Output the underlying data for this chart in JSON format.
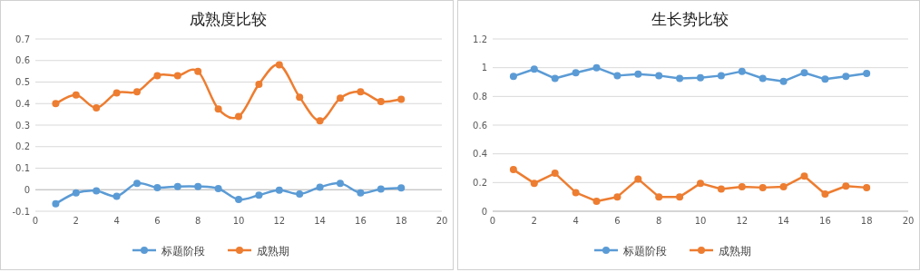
{
  "chart_data": [
    {
      "type": "line",
      "title": "成熟度比较",
      "x": [
        1,
        2,
        3,
        4,
        5,
        6,
        7,
        8,
        9,
        10,
        11,
        12,
        13,
        14,
        15,
        16,
        17,
        18
      ],
      "xlim": [
        0,
        20
      ],
      "xticks": [
        0,
        2,
        4,
        6,
        8,
        10,
        12,
        14,
        16,
        18,
        20
      ],
      "ylim": [
        -0.1,
        0.7
      ],
      "yticks": [
        -0.1,
        0,
        0.1,
        0.2,
        0.3,
        0.4,
        0.5,
        0.6,
        0.7
      ],
      "grid": "y",
      "legend": "bottom",
      "marker": "circle",
      "line_style": "solid",
      "series": [
        {
          "name": "标题阶段",
          "color": "#5b9bd5",
          "values": [
            -0.065,
            -0.015,
            -0.005,
            -0.03,
            0.03,
            0.01,
            0.015,
            0.015,
            0.005,
            -0.045,
            -0.025,
            -0.002,
            -0.02,
            0.012,
            0.03,
            -0.015,
            0.003,
            0.008
          ]
        },
        {
          "name": "成熟期",
          "color": "#ed7d31",
          "values": [
            0.4,
            0.44,
            0.38,
            0.45,
            0.455,
            0.53,
            0.53,
            0.55,
            0.375,
            0.34,
            0.49,
            0.58,
            0.43,
            0.32,
            0.425,
            0.455,
            0.41,
            0.42
          ]
        }
      ]
    },
    {
      "type": "line",
      "title": "生长势比较",
      "x": [
        1,
        2,
        3,
        4,
        5,
        6,
        7,
        8,
        9,
        10,
        11,
        12,
        13,
        14,
        15,
        16,
        17,
        18
      ],
      "xlim": [
        0,
        20
      ],
      "xticks": [
        0,
        2,
        4,
        6,
        8,
        10,
        12,
        14,
        16,
        18,
        20
      ],
      "ylim": [
        0,
        1.2
      ],
      "yticks": [
        0,
        0.2,
        0.4,
        0.6,
        0.8,
        1,
        1.2
      ],
      "grid": "y",
      "legend": "bottom",
      "marker": "circle",
      "line_style": "solid",
      "series": [
        {
          "name": "标题阶段",
          "color": "#5b9bd5",
          "values": [
            0.94,
            0.99,
            0.925,
            0.965,
            1.0,
            0.945,
            0.955,
            0.945,
            0.925,
            0.93,
            0.945,
            0.975,
            0.925,
            0.905,
            0.965,
            0.92,
            0.94,
            0.96
          ]
        },
        {
          "name": "成熟期",
          "color": "#ed7d31",
          "values": [
            0.29,
            0.195,
            0.265,
            0.13,
            0.07,
            0.1,
            0.225,
            0.1,
            0.1,
            0.195,
            0.155,
            0.17,
            0.165,
            0.17,
            0.245,
            0.12,
            0.175,
            0.165
          ]
        }
      ]
    }
  ]
}
